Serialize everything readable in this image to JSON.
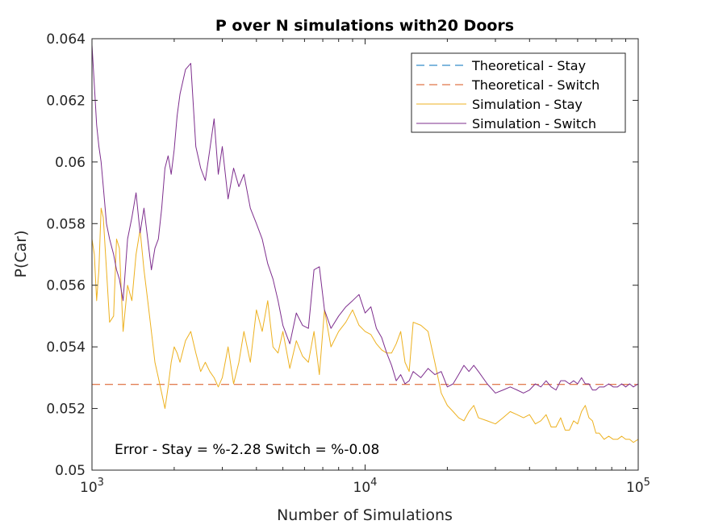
{
  "chart_data": {
    "type": "line",
    "title": "P over N simulations with20 Doors",
    "xlabel": "Number of Simulations",
    "ylabel": "P(Car)",
    "xscale": "log",
    "xlim": [
      1000,
      100000
    ],
    "ylim": [
      0.05,
      0.064
    ],
    "grid": false,
    "legend_position": "top-right",
    "x_ticks": [
      {
        "value": 1000,
        "base": "10",
        "exp": "3"
      },
      {
        "value": 10000,
        "base": "10",
        "exp": "4"
      },
      {
        "value": 100000,
        "base": "10",
        "exp": "5"
      }
    ],
    "y_ticks": [
      {
        "value": 0.05,
        "label": "0.05"
      },
      {
        "value": 0.052,
        "label": "0.052"
      },
      {
        "value": 0.054,
        "label": "0.054"
      },
      {
        "value": 0.056,
        "label": "0.056"
      },
      {
        "value": 0.058,
        "label": "0.058"
      },
      {
        "value": 0.06,
        "label": "0.06"
      },
      {
        "value": 0.062,
        "label": "0.062"
      },
      {
        "value": 0.064,
        "label": "0.064"
      }
    ],
    "annotation": "Error - Stay = %-2.28 Switch = %-0.08",
    "series": [
      {
        "name": "Theoretical - Stay",
        "style": "dashed",
        "color": "#0072BD",
        "x": [
          1000,
          100000
        ],
        "y": [
          0.05,
          0.05
        ]
      },
      {
        "name": "Theoretical - Switch",
        "style": "dashed",
        "color": "#D95319",
        "x": [
          1000,
          100000
        ],
        "y": [
          0.05278,
          0.05278
        ]
      },
      {
        "name": "Simulation - Stay",
        "style": "solid",
        "color": "#EDB120",
        "x": [
          1000,
          1020,
          1040,
          1060,
          1080,
          1100,
          1130,
          1160,
          1200,
          1230,
          1260,
          1300,
          1350,
          1400,
          1450,
          1500,
          1550,
          1600,
          1650,
          1700,
          1750,
          1800,
          1850,
          1900,
          1950,
          2000,
          2050,
          2100,
          2200,
          2300,
          2400,
          2500,
          2600,
          2700,
          2800,
          2900,
          3000,
          3150,
          3300,
          3450,
          3600,
          3800,
          4000,
          4200,
          4400,
          4600,
          4800,
          5000,
          5300,
          5600,
          5900,
          6200,
          6500,
          6800,
          7100,
          7500,
          8000,
          8500,
          9000,
          9500,
          10000,
          10500,
          11000,
          11500,
          12000,
          12500,
          13000,
          13500,
          14000,
          14500,
          15000,
          16000,
          17000,
          18000,
          19000,
          20000,
          21000,
          22000,
          23000,
          24000,
          25000,
          26000,
          28000,
          30000,
          32000,
          34000,
          36000,
          38000,
          40000,
          42000,
          44000,
          46000,
          48000,
          50000,
          52000,
          54000,
          56000,
          58000,
          60000,
          62000,
          64000,
          66000,
          68000,
          70000,
          72000,
          75000,
          78000,
          81000,
          84000,
          87000,
          90000,
          93000,
          96000,
          100000
        ],
        "y": [
          0.0575,
          0.057,
          0.0555,
          0.0565,
          0.0585,
          0.0582,
          0.0565,
          0.0548,
          0.055,
          0.0575,
          0.0572,
          0.0545,
          0.056,
          0.0555,
          0.057,
          0.0578,
          0.0565,
          0.0555,
          0.0545,
          0.0535,
          0.053,
          0.0525,
          0.052,
          0.0527,
          0.0535,
          0.054,
          0.0538,
          0.0535,
          0.0542,
          0.0545,
          0.0538,
          0.0532,
          0.0535,
          0.0532,
          0.053,
          0.0527,
          0.053,
          0.054,
          0.0528,
          0.0535,
          0.0545,
          0.0535,
          0.0552,
          0.0545,
          0.0555,
          0.054,
          0.0538,
          0.0545,
          0.0533,
          0.0542,
          0.0537,
          0.0535,
          0.0545,
          0.0531,
          0.0552,
          0.054,
          0.0545,
          0.0548,
          0.0552,
          0.0547,
          0.0545,
          0.0544,
          0.0541,
          0.0539,
          0.0538,
          0.0538,
          0.0541,
          0.0545,
          0.0535,
          0.0532,
          0.0548,
          0.0547,
          0.0545,
          0.0535,
          0.0525,
          0.0521,
          0.0519,
          0.0517,
          0.0516,
          0.0519,
          0.0521,
          0.0517,
          0.0516,
          0.0515,
          0.0517,
          0.0519,
          0.0518,
          0.0517,
          0.0518,
          0.0515,
          0.0516,
          0.0518,
          0.0514,
          0.0514,
          0.0517,
          0.0513,
          0.0513,
          0.0516,
          0.0515,
          0.0519,
          0.0521,
          0.0517,
          0.0516,
          0.0512,
          0.0512,
          0.051,
          0.0511,
          0.051,
          0.051,
          0.0511,
          0.051,
          0.051,
          0.0509,
          0.051
        ]
      },
      {
        "name": "Simulation - Switch",
        "style": "solid",
        "color": "#7E2F8E",
        "x": [
          1000,
          1020,
          1040,
          1060,
          1080,
          1100,
          1130,
          1160,
          1200,
          1230,
          1260,
          1300,
          1350,
          1400,
          1450,
          1500,
          1550,
          1600,
          1650,
          1700,
          1750,
          1800,
          1850,
          1900,
          1950,
          2000,
          2050,
          2100,
          2200,
          2300,
          2400,
          2500,
          2600,
          2700,
          2800,
          2900,
          3000,
          3150,
          3300,
          3450,
          3600,
          3800,
          4000,
          4200,
          4400,
          4600,
          4800,
          5000,
          5300,
          5600,
          5900,
          6200,
          6500,
          6800,
          7100,
          7500,
          8000,
          8500,
          9000,
          9500,
          10000,
          10500,
          11000,
          11500,
          12000,
          12500,
          13000,
          13500,
          14000,
          14500,
          15000,
          16000,
          17000,
          18000,
          19000,
          20000,
          21000,
          22000,
          23000,
          24000,
          25000,
          26000,
          28000,
          30000,
          32000,
          34000,
          36000,
          38000,
          40000,
          42000,
          44000,
          46000,
          48000,
          50000,
          52000,
          54000,
          56000,
          58000,
          60000,
          62000,
          64000,
          66000,
          68000,
          70000,
          72000,
          75000,
          78000,
          81000,
          84000,
          87000,
          90000,
          93000,
          96000,
          100000
        ],
        "y": [
          0.0638,
          0.0625,
          0.0612,
          0.0605,
          0.06,
          0.0592,
          0.058,
          0.0575,
          0.057,
          0.0565,
          0.0562,
          0.0555,
          0.0575,
          0.0582,
          0.059,
          0.0577,
          0.0585,
          0.0575,
          0.0565,
          0.0572,
          0.0575,
          0.0585,
          0.0598,
          0.0602,
          0.0596,
          0.0604,
          0.0615,
          0.0622,
          0.063,
          0.0632,
          0.0605,
          0.0598,
          0.0594,
          0.0604,
          0.0614,
          0.0596,
          0.0605,
          0.0588,
          0.0598,
          0.0592,
          0.0596,
          0.0585,
          0.058,
          0.0575,
          0.0567,
          0.0562,
          0.0555,
          0.0547,
          0.0541,
          0.0551,
          0.0547,
          0.0546,
          0.0565,
          0.0566,
          0.0552,
          0.0546,
          0.055,
          0.0553,
          0.0555,
          0.0557,
          0.0551,
          0.0553,
          0.0546,
          0.0543,
          0.0538,
          0.0534,
          0.0529,
          0.0531,
          0.0528,
          0.0529,
          0.0532,
          0.053,
          0.0533,
          0.0531,
          0.0532,
          0.0527,
          0.0528,
          0.0531,
          0.0534,
          0.0532,
          0.0534,
          0.0532,
          0.0528,
          0.0525,
          0.0526,
          0.0527,
          0.0526,
          0.0525,
          0.0526,
          0.0528,
          0.0527,
          0.0529,
          0.0527,
          0.0526,
          0.0529,
          0.0529,
          0.0528,
          0.0529,
          0.0528,
          0.053,
          0.0528,
          0.0528,
          0.0526,
          0.0526,
          0.0527,
          0.0527,
          0.0528,
          0.0527,
          0.0527,
          0.0528,
          0.0527,
          0.0528,
          0.0527,
          0.0528
        ]
      }
    ]
  }
}
